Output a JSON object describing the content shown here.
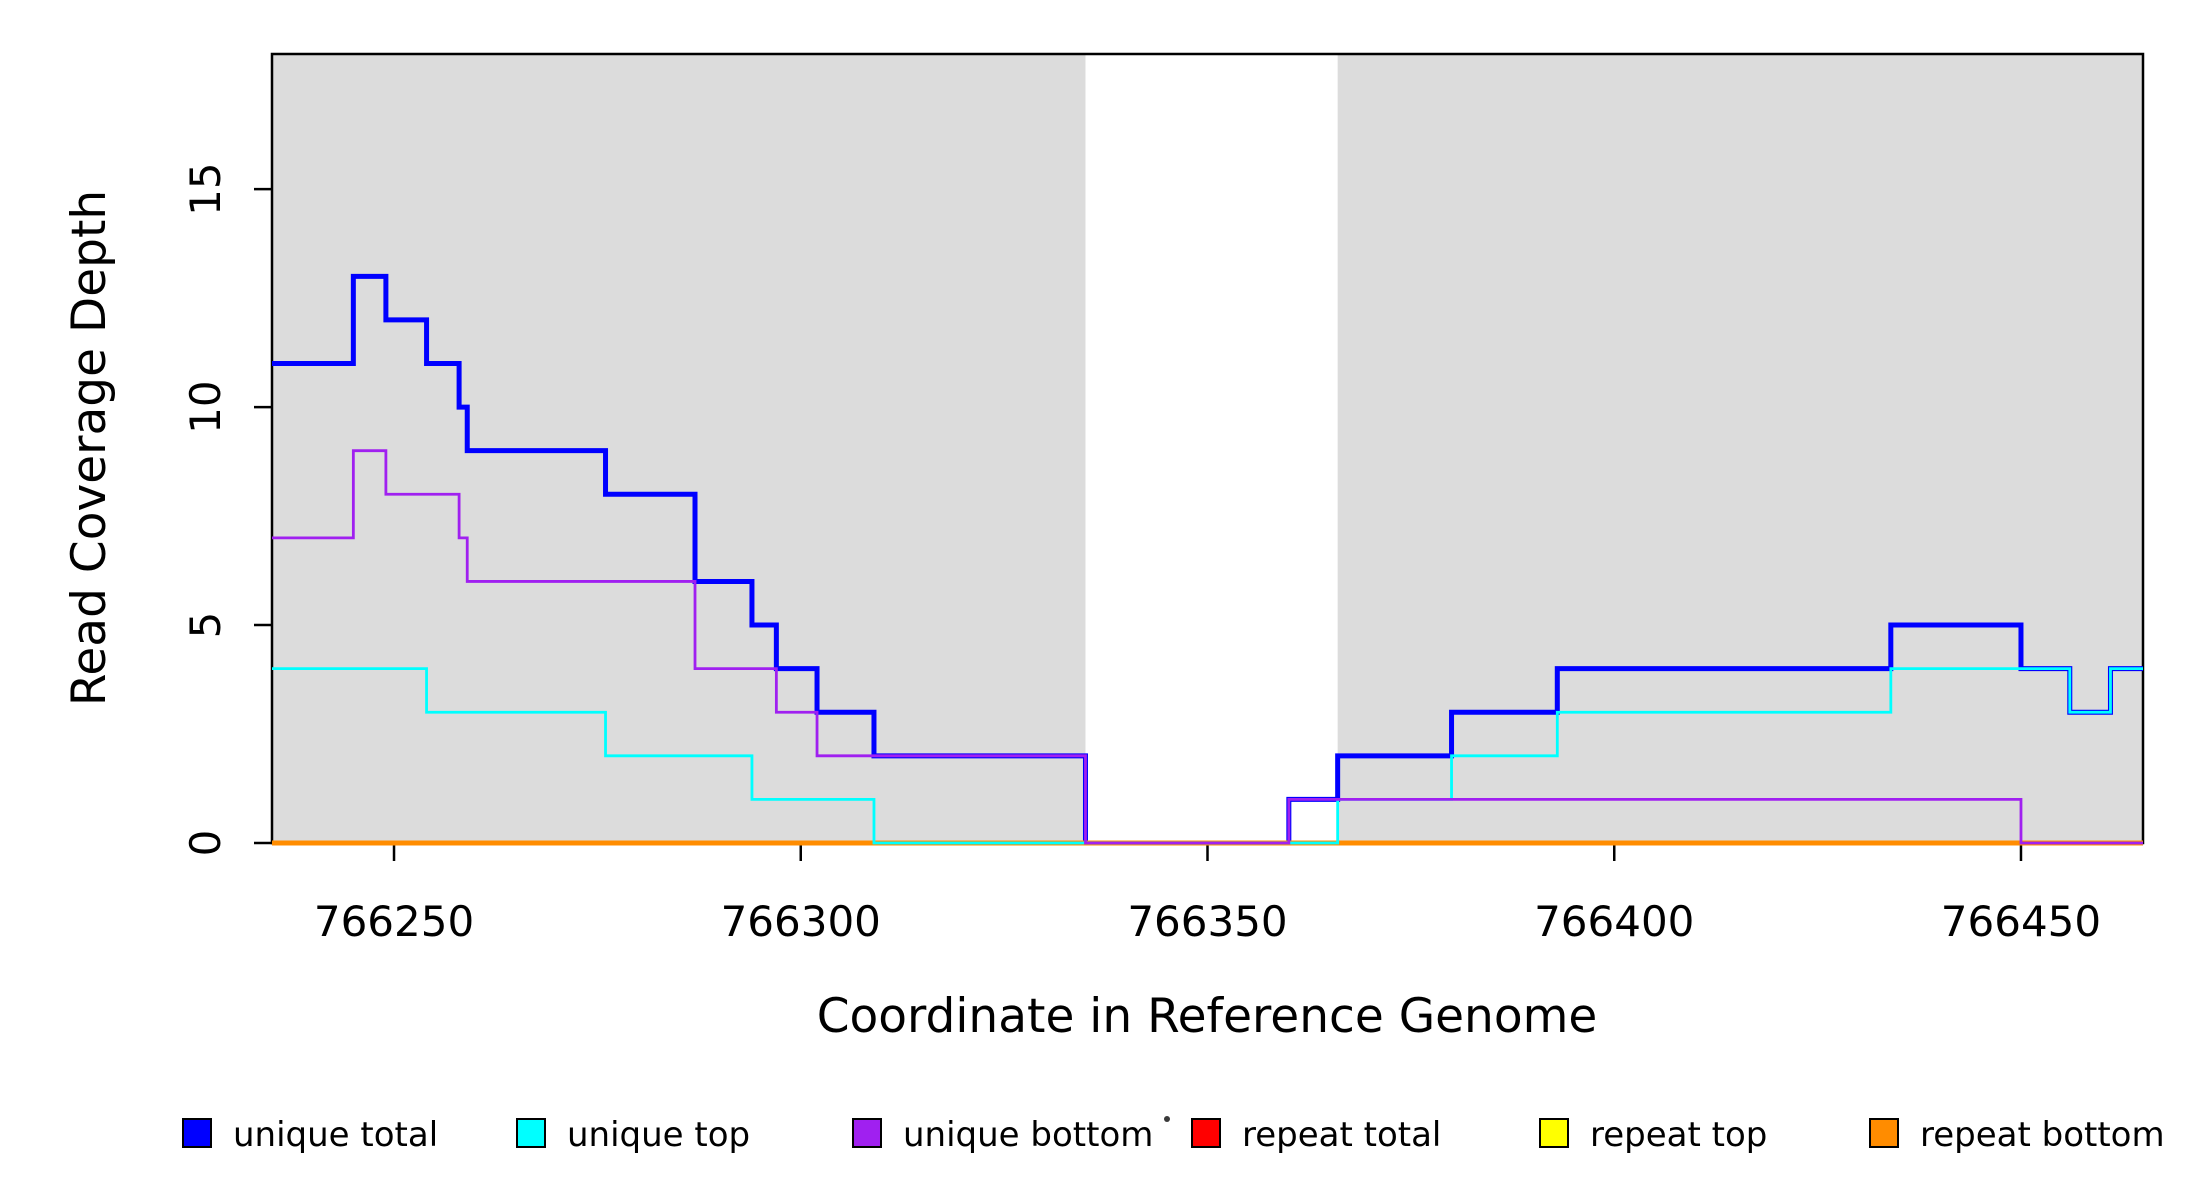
{
  "chart_data": {
    "type": "line",
    "subtype": "step",
    "title": "",
    "xlabel": "Coordinate in Reference Genome",
    "ylabel": "Read Coverage Depth",
    "x_range": [
      766235,
      766465
    ],
    "y_range": [
      0,
      18.1
    ],
    "x_ticks": [
      766250,
      766300,
      766350,
      766400,
      766450
    ],
    "x_tick_labels": [
      "766250",
      "766300",
      "766350",
      "766400",
      "766450"
    ],
    "y_ticks": [
      0,
      5,
      10,
      15
    ],
    "y_tick_labels": [
      "0",
      "5",
      "10",
      "15"
    ],
    "grid": false,
    "background_color": "#FFFFFF",
    "panel_shading_color": "#DCDCDC",
    "axis_color": "#000000",
    "shaded_regions": [
      {
        "x0": 766235,
        "x1": 766335
      },
      {
        "x0": 766366,
        "x1": 766465
      }
    ],
    "series": [
      {
        "name": "unique total",
        "color": "#0000FF",
        "lwd": 2,
        "steps": [
          [
            766235,
            11
          ],
          [
            766245,
            13
          ],
          [
            766249,
            12
          ],
          [
            766254,
            11
          ],
          [
            766258,
            10
          ],
          [
            766259,
            9
          ],
          [
            766276,
            8
          ],
          [
            766287,
            6
          ],
          [
            766294,
            5
          ],
          [
            766297,
            4
          ],
          [
            766302,
            3
          ],
          [
            766309,
            2
          ],
          [
            766335,
            0
          ],
          [
            766360,
            1
          ],
          [
            766366,
            2
          ],
          [
            766380,
            3
          ],
          [
            766393,
            4
          ],
          [
            766434,
            5
          ],
          [
            766450,
            4
          ],
          [
            766456,
            3
          ],
          [
            766461,
            4
          ]
        ]
      },
      {
        "name": "repeat total",
        "color": "#FF0000",
        "lwd": 1,
        "steps": [
          [
            766235,
            0
          ]
        ]
      },
      {
        "name": "repeat top",
        "color": "#FFFF00",
        "lwd": 1,
        "steps": [
          [
            766235,
            0
          ]
        ]
      },
      {
        "name": "repeat bottom",
        "color": "#FF8C00",
        "lwd": 2,
        "steps": [
          [
            766235,
            0
          ]
        ]
      },
      {
        "name": "unique top",
        "color": "#00FFFF",
        "lwd": 1,
        "steps": [
          [
            766235,
            4
          ],
          [
            766254,
            3
          ],
          [
            766276,
            2
          ],
          [
            766294,
            1
          ],
          [
            766309,
            0
          ],
          [
            766366,
            1
          ],
          [
            766380,
            2
          ],
          [
            766393,
            3
          ],
          [
            766434,
            4
          ],
          [
            766456,
            3
          ],
          [
            766461,
            4
          ]
        ]
      },
      {
        "name": "unique bottom",
        "color": "#A020F0",
        "lwd": 1,
        "steps": [
          [
            766235,
            7
          ],
          [
            766245,
            9
          ],
          [
            766249,
            8
          ],
          [
            766258,
            7
          ],
          [
            766259,
            6
          ],
          [
            766287,
            4
          ],
          [
            766297,
            3
          ],
          [
            766302,
            2
          ],
          [
            766335,
            0
          ],
          [
            766360,
            1
          ],
          [
            766450,
            0
          ]
        ]
      }
    ],
    "legend": [
      {
        "label": "unique total",
        "color": "#0000FF"
      },
      {
        "label": "unique top",
        "color": "#00FFFF"
      },
      {
        "label": "unique bottom",
        "color": "#A020F0"
      },
      {
        "label": "repeat total",
        "color": "#FF0000"
      },
      {
        "label": "repeat top",
        "color": "#FFFF00"
      },
      {
        "label": "repeat bottom",
        "color": "#FF8C00"
      }
    ],
    "legend_position": "bottom"
  }
}
